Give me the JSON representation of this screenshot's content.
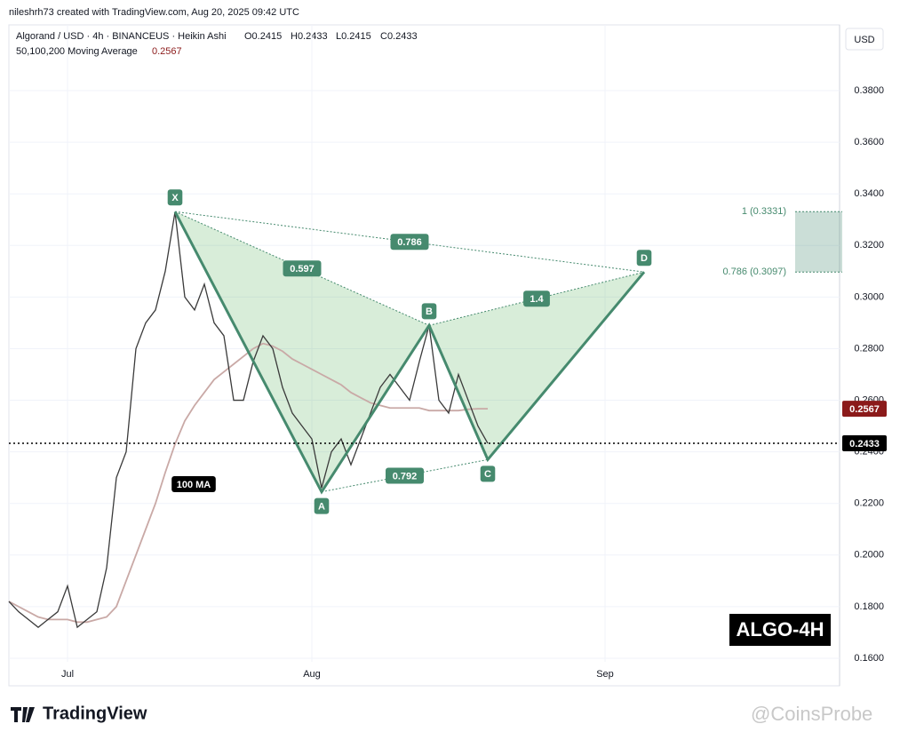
{
  "header": {
    "credit": "nileshrh73 created with TradingView.com, Aug 20, 2025 09:42 UTC",
    "symbol": "Algorand / USD · 4h · BINANCEUS · Heikin Ashi",
    "ohlc": [
      "O0.2415",
      "H0.2433",
      "L0.2415",
      "C0.2433"
    ],
    "indicator": "50,100,200 Moving Average",
    "indicator_value": "0.2567"
  },
  "chart_data": {
    "type": "line",
    "color": "#3a3a3a",
    "categories": [
      null,
      null,
      null,
      null,
      null,
      null,
      "Jul",
      null,
      null,
      null,
      null,
      null,
      null,
      null,
      null,
      null,
      null,
      null,
      null,
      null,
      null,
      null,
      null,
      null,
      null,
      null,
      null,
      null,
      null,
      null,
      null,
      "Aug",
      null,
      null,
      null,
      null,
      null,
      null,
      null,
      null,
      null,
      null,
      null,
      null,
      null,
      null,
      null,
      null,
      null,
      null,
      null,
      null,
      null,
      null,
      null,
      null,
      null,
      null,
      null,
      null,
      null,
      "Sep",
      null,
      null,
      null,
      null,
      null,
      null,
      null,
      null,
      null,
      null,
      null,
      null,
      null,
      null,
      null,
      null,
      null,
      null,
      null,
      null,
      null,
      null,
      null,
      null
    ],
    "values": [
      0.182,
      0.178,
      0.175,
      0.172,
      0.175,
      0.178,
      0.188,
      0.172,
      0.175,
      0.178,
      0.195,
      0.23,
      0.24,
      0.28,
      0.29,
      0.295,
      0.31,
      0.333,
      0.3,
      0.295,
      0.305,
      0.29,
      0.285,
      0.26,
      0.26,
      0.275,
      0.285,
      0.28,
      0.265,
      0.255,
      0.25,
      0.245,
      0.226,
      0.24,
      0.245,
      0.235,
      0.245,
      0.255,
      0.265,
      0.27,
      0.265,
      0.26,
      0.275,
      0.289,
      0.26,
      0.255,
      0.27,
      0.26,
      0.25,
      0.2433,
      null,
      null,
      null,
      null,
      null,
      null,
      null,
      null,
      null,
      null,
      null,
      null,
      null,
      null,
      null,
      null,
      null,
      null,
      null,
      null,
      null,
      null,
      null,
      null,
      null,
      null,
      null,
      null,
      null,
      null,
      null,
      null,
      null,
      null,
      null,
      null
    ],
    "moving_average": {
      "label": "100 MA",
      "color": "#c9a9a6",
      "values": [
        0.182,
        0.18,
        0.178,
        0.176,
        0.175,
        0.175,
        0.175,
        0.174,
        0.174,
        0.175,
        0.176,
        0.18,
        0.19,
        0.2,
        0.21,
        0.22,
        0.232,
        0.243,
        0.252,
        0.258,
        0.263,
        0.268,
        0.271,
        0.274,
        0.277,
        0.28,
        0.282,
        0.281,
        0.279,
        0.276,
        0.274,
        0.272,
        0.27,
        0.268,
        0.266,
        0.263,
        0.261,
        0.259,
        0.258,
        0.257,
        0.257,
        0.257,
        0.257,
        0.256,
        0.256,
        0.256,
        0.256,
        0.2565,
        0.2567,
        0.2567
      ]
    },
    "currency": "USD",
    "ylim": [
      0.15,
      0.4055
    ],
    "yticks": [
      {
        "value": 0.16,
        "label": "0.1600"
      },
      {
        "value": 0.18,
        "label": "0.1800"
      },
      {
        "value": 0.2,
        "label": "0.2000"
      },
      {
        "value": 0.22,
        "label": "0.2200"
      },
      {
        "value": 0.24,
        "label": "0.2400"
      },
      {
        "value": 0.26,
        "label": "0.2600"
      },
      {
        "value": 0.28,
        "label": "0.2800"
      },
      {
        "value": 0.3,
        "label": "0.3000"
      },
      {
        "value": 0.32,
        "label": "0.3200"
      },
      {
        "value": 0.34,
        "label": "0.3400"
      },
      {
        "value": 0.36,
        "label": "0.3600"
      },
      {
        "value": 0.38,
        "label": "0.3800"
      }
    ],
    "grid": true,
    "last_price": {
      "value": 0.2433,
      "label": "0.2433"
    },
    "ma_last": {
      "value": 0.2567,
      "label": "0.2567"
    },
    "pattern": {
      "color": "#468a6e",
      "points": [
        {
          "label": "X",
          "index": 17,
          "value": 0.3331
        },
        {
          "label": "A",
          "index": 32,
          "value": 0.2245
        },
        {
          "label": "B",
          "index": 43,
          "value": 0.289
        },
        {
          "label": "C",
          "index": 49,
          "value": 0.237
        },
        {
          "label": "D",
          "index": 65,
          "value": 0.3097
        }
      ],
      "ratios": {
        "xb": 0.597,
        "xd": 0.786,
        "bd": 1.4,
        "ac": 0.792
      },
      "target_zone": {
        "upper": {
          "value": 0.3331,
          "label": "1 (0.3331)"
        },
        "lower": {
          "value": 0.3097,
          "label": "0.786 (0.3097)"
        }
      }
    },
    "badge": "ALGO-4H"
  },
  "footer": {
    "logo": "TradingView",
    "watermark": "@CoinsProbe"
  }
}
